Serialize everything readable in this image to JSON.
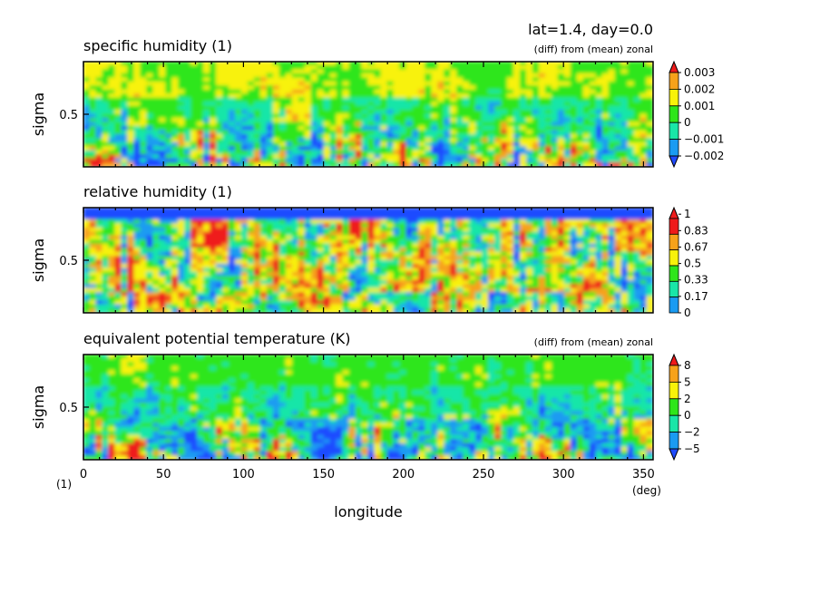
{
  "header": {
    "title": "lat=1.4, day=0.0"
  },
  "colors": {
    "deep_blue": "#1f4bff",
    "blue": "#1a9bf2",
    "teal": "#19e6a8",
    "green": "#2ee61a",
    "yellow": "#f8f20a",
    "orange": "#f7a21a",
    "red": "#ef1a1a"
  },
  "x_axis": {
    "label": "longitude",
    "unit": "(deg)",
    "ticks": [
      "0",
      "50",
      "100",
      "150",
      "200",
      "250",
      "300",
      "350"
    ],
    "left_unit": "(1)"
  },
  "chart_data": [
    {
      "type": "heatmap",
      "title": "specific humidity (1)",
      "note": "(diff) from (mean) zonal",
      "xlabel": "longitude",
      "ylabel": "sigma",
      "xlim": [
        0,
        356
      ],
      "ylim": [
        0,
        1
      ],
      "ytick": "0.5",
      "colorbar": [
        "0.003",
        "0.002",
        "0.001",
        "0",
        "−0.001",
        "−0.002"
      ]
    },
    {
      "type": "heatmap",
      "title": "relative humidity (1)",
      "note": "",
      "xlabel": "longitude",
      "ylabel": "sigma",
      "xlim": [
        0,
        356
      ],
      "ylim": [
        0,
        1
      ],
      "ytick": "0.5",
      "colorbar": [
        "1",
        "0.83",
        "0.67",
        "0.5",
        "0.33",
        "0.17",
        "0"
      ]
    },
    {
      "type": "heatmap",
      "title": "equivalent potential temperature (K)",
      "note": "(diff) from (mean) zonal",
      "xlabel": "longitude",
      "ylabel": "sigma",
      "xlim": [
        0,
        356
      ],
      "ylim": [
        0,
        1
      ],
      "ytick": "0.5",
      "colorbar": [
        "8",
        "5",
        "2",
        "0",
        "−2",
        "−5"
      ]
    }
  ]
}
